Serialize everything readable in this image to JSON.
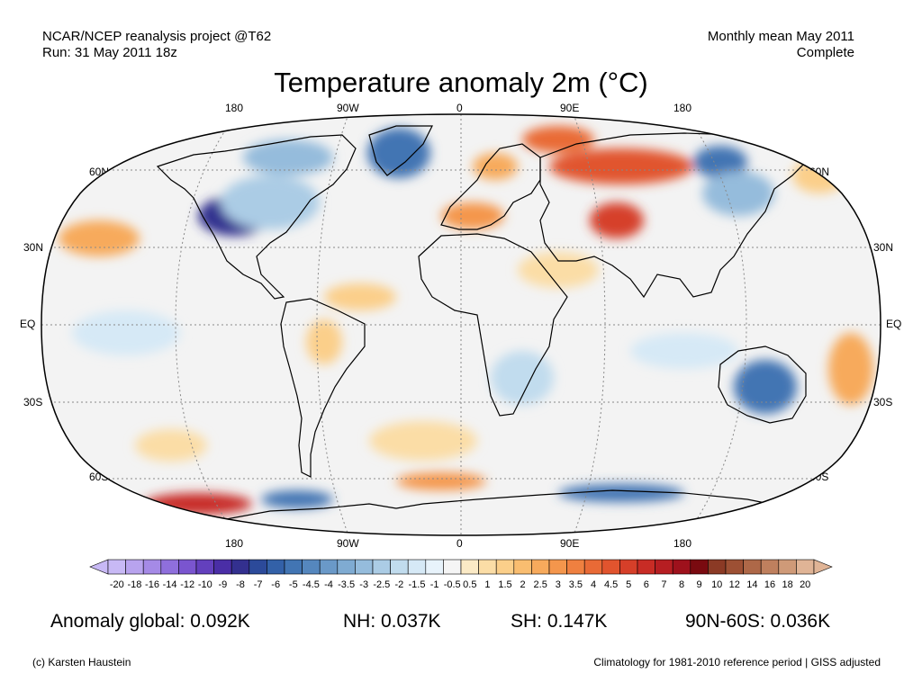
{
  "header": {
    "top_left_line1": "NCAR/NCEP reanalysis project @T62",
    "top_left_line2": "Run: 31 May 2011 18z",
    "top_right_line1": "Monthly mean May 2011",
    "top_right_line2": "Complete"
  },
  "title": "Temperature anomaly 2m (°C)",
  "axes": {
    "lon_top": [
      "180",
      "90W",
      "0",
      "90E",
      "180"
    ],
    "lon_bottom": [
      "180",
      "90W",
      "0",
      "90E",
      "180"
    ],
    "lat_left": [
      "60N",
      "30N",
      "EQ",
      "30S",
      "60S"
    ],
    "lat_right": [
      "60N",
      "30N",
      "EQ",
      "30S",
      "60S"
    ]
  },
  "colorbar": {
    "labels": [
      "-20",
      "-18",
      "-16",
      "-14",
      "-12",
      "-10",
      "-9",
      "-8",
      "-7",
      "-6",
      "-5",
      "-4.5",
      "-4",
      "-3.5",
      "-3",
      "-2.5",
      "-2",
      "-1.5",
      "-1",
      "-0.5",
      "0.5",
      "1",
      "1.5",
      "2",
      "2.5",
      "3",
      "3.5",
      "4",
      "4.5",
      "5",
      "6",
      "7",
      "8",
      "9",
      "10",
      "12",
      "14",
      "16",
      "18",
      "20"
    ],
    "colors": [
      "#c8b9f5",
      "#b8a3ee",
      "#a58ae6",
      "#8f6fdc",
      "#7a55cf",
      "#6340bd",
      "#4a2ea6",
      "#33308f",
      "#2c4a9a",
      "#3361a8",
      "#4275b3",
      "#5587be",
      "#6a99c8",
      "#7fabd2",
      "#95bcdc",
      "#abcce5",
      "#c1dcee",
      "#d6e9f6",
      "#e8f3fb",
      "#f5f5f5",
      "#fbeac6",
      "#fbdda6",
      "#fbcf8a",
      "#f9bd70",
      "#f7aa5c",
      "#f4964c",
      "#ef8040",
      "#e96a36",
      "#e1542e",
      "#d63f29",
      "#c82c25",
      "#b61e22",
      "#9e111c",
      "#7a0a10",
      "#8b3a25",
      "#9d5034",
      "#ae6848",
      "#bf805e",
      "#cf9a78",
      "#e0b496"
    ]
  },
  "map": {
    "ocean_color": "#f3f3f3",
    "land_outline_color": "#000000",
    "anomalies": [
      {
        "region": "Greenland",
        "sign": "cold",
        "color": "#4275b3"
      },
      {
        "region": "Central US",
        "sign": "cold",
        "color": "#33308f"
      },
      {
        "region": "North Pacific",
        "sign": "warm",
        "color": "#f7aa5c"
      },
      {
        "region": "Northern Siberia",
        "sign": "warm",
        "color": "#e1542e"
      },
      {
        "region": "Central Asia",
        "sign": "warm",
        "color": "#d63f29"
      },
      {
        "region": "Eastern Siberia",
        "sign": "cold",
        "color": "#4275b3"
      },
      {
        "region": "Eastern Australia",
        "sign": "cold",
        "color": "#4275b3"
      },
      {
        "region": "Southern Ocean / Antarctic coast",
        "sign": "warm",
        "color": "#c82c25"
      }
    ]
  },
  "stats": {
    "global": "Anomaly global: 0.092K",
    "nh": "NH: 0.037K",
    "sh": "SH: 0.147K",
    "band": "90N-60S: 0.036K"
  },
  "footer": {
    "left": "(c) Karsten Haustein",
    "right": "Climatology for 1981-2010 reference period | GISS adjusted"
  }
}
